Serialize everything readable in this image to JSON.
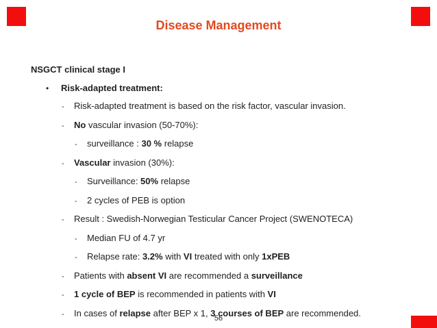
{
  "slide": {
    "title": "Disease Management",
    "heading": "NSGCT clinical stage I",
    "page_number": "56",
    "markers": {
      "bullet": "•",
      "dash": "-"
    },
    "colors": {
      "title_text": "#e2491f",
      "corner_squares": "#f30e0e"
    },
    "lines": [
      {
        "level": 1,
        "marker": "bullet",
        "segments": [
          {
            "text": "Risk-adapted treatment:",
            "bold": true
          }
        ]
      },
      {
        "level": 2,
        "marker": "dash",
        "segments": [
          {
            "text": "Risk-adapted treatment is based on the risk factor, vascular invasion.",
            "bold": false
          }
        ]
      },
      {
        "level": 2,
        "marker": "dash",
        "segments": [
          {
            "text": "No",
            "bold": true
          },
          {
            "text": " vascular invasion (50-70%):",
            "bold": false
          }
        ]
      },
      {
        "level": 3,
        "marker": "dash",
        "segments": [
          {
            "text": "surveillance : ",
            "bold": false
          },
          {
            "text": "30 %",
            "bold": true
          },
          {
            "text": " relapse",
            "bold": false
          }
        ]
      },
      {
        "level": 2,
        "marker": "dash",
        "segments": [
          {
            "text": "Vascular",
            "bold": true
          },
          {
            "text": " invasion (30%):",
            "bold": false
          }
        ]
      },
      {
        "level": 3,
        "marker": "dash",
        "segments": [
          {
            "text": "Surveillance: ",
            "bold": false
          },
          {
            "text": "50%",
            "bold": true
          },
          {
            "text": " relapse",
            "bold": false
          }
        ]
      },
      {
        "level": 3,
        "marker": "dash",
        "segments": [
          {
            "text": "2 cycles of PEB is option",
            "bold": false
          }
        ]
      },
      {
        "level": 2,
        "marker": "dash",
        "segments": [
          {
            "text": "Result : Swedish-Norwegian Testicular Cancer Project (SWENOTECA)",
            "bold": false
          }
        ]
      },
      {
        "level": 3,
        "marker": "dash",
        "segments": [
          {
            "text": "Median FU of 4.7 yr",
            "bold": false
          }
        ]
      },
      {
        "level": 3,
        "marker": "dash",
        "segments": [
          {
            "text": "Relapse rate: ",
            "bold": false
          },
          {
            "text": "3.2%",
            "bold": true
          },
          {
            "text": " with ",
            "bold": false
          },
          {
            "text": "VI",
            "bold": true
          },
          {
            "text": " treated with only ",
            "bold": false
          },
          {
            "text": "1xPEB",
            "bold": true
          }
        ]
      },
      {
        "level": 2,
        "marker": "dash",
        "segments": [
          {
            "text": "Patients with ",
            "bold": false
          },
          {
            "text": "absent VI",
            "bold": true
          },
          {
            "text": " are recommended a ",
            "bold": false
          },
          {
            "text": "surveillance",
            "bold": true
          }
        ]
      },
      {
        "level": 2,
        "marker": "dash",
        "segments": [
          {
            "text": "1 cycle of BEP",
            "bold": true
          },
          {
            "text": " is recommended in patients with ",
            "bold": false
          },
          {
            "text": "VI",
            "bold": true
          }
        ]
      },
      {
        "level": 2,
        "marker": "dash",
        "segments": [
          {
            "text": "In cases of ",
            "bold": false
          },
          {
            "text": "relapse",
            "bold": true
          },
          {
            "text": " after BEP x 1, ",
            "bold": false
          },
          {
            "text": "3 courses of BEP",
            "bold": true
          },
          {
            "text": " are recommended.",
            "bold": false
          }
        ]
      }
    ]
  }
}
